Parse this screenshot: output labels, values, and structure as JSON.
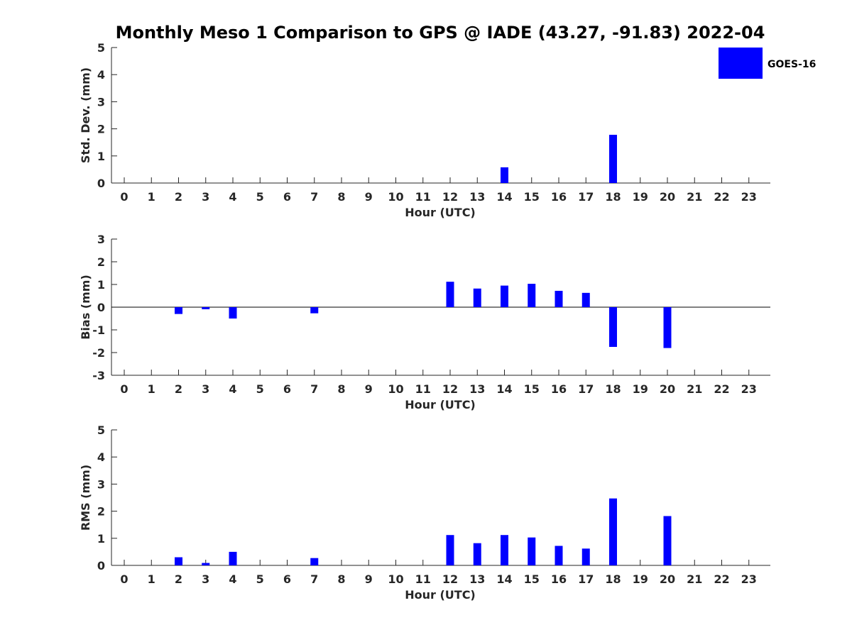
{
  "colors": {
    "bar": "#0000ff",
    "axis": "#262626",
    "zero_line": "#000000"
  },
  "chart_data": {
    "title": "Monthly Meso 1 Comparison to GPS @ IADE (43.27, -91.83) 2022-04",
    "legend": {
      "label": "GOES-16",
      "placement": "top-right"
    },
    "panels": [
      {
        "type": "bar",
        "xlabel": "Hour (UTC)",
        "ylabel": "Std. Dev. (mm)",
        "ylim": [
          0,
          5
        ],
        "yticks": [
          0,
          1,
          2,
          3,
          4,
          5
        ],
        "categories": [
          "0",
          "1",
          "2",
          "3",
          "4",
          "5",
          "6",
          "7",
          "8",
          "9",
          "10",
          "11",
          "12",
          "13",
          "14",
          "15",
          "16",
          "17",
          "18",
          "19",
          "20",
          "21",
          "22",
          "23"
        ],
        "series": [
          {
            "values": [
              null,
              null,
              0,
              0,
              0,
              null,
              null,
              0,
              null,
              null,
              null,
              null,
              0,
              0,
              0.58,
              0,
              0,
              0,
              1.78,
              null,
              0,
              null,
              null,
              null
            ]
          }
        ]
      },
      {
        "type": "bar",
        "xlabel": "Hour (UTC)",
        "ylabel": "Bias (mm)",
        "ylim": [
          -3,
          3
        ],
        "yticks": [
          -3,
          -2,
          -1,
          0,
          1,
          2,
          3
        ],
        "zero_line": true,
        "categories": [
          "0",
          "1",
          "2",
          "3",
          "4",
          "5",
          "6",
          "7",
          "8",
          "9",
          "10",
          "11",
          "12",
          "13",
          "14",
          "15",
          "16",
          "17",
          "18",
          "19",
          "20",
          "21",
          "22",
          "23"
        ],
        "series": [
          {
            "values": [
              null,
              null,
              -0.3,
              -0.09,
              -0.5,
              null,
              null,
              -0.27,
              null,
              null,
              null,
              null,
              1.12,
              0.82,
              0.95,
              1.03,
              0.72,
              0.63,
              -1.75,
              null,
              -1.8,
              null,
              null,
              null
            ]
          }
        ]
      },
      {
        "type": "bar",
        "xlabel": "Hour (UTC)",
        "ylabel": "RMS (mm)",
        "ylim": [
          0,
          5
        ],
        "yticks": [
          0,
          1,
          2,
          3,
          4,
          5
        ],
        "categories": [
          "0",
          "1",
          "2",
          "3",
          "4",
          "5",
          "6",
          "7",
          "8",
          "9",
          "10",
          "11",
          "12",
          "13",
          "14",
          "15",
          "16",
          "17",
          "18",
          "19",
          "20",
          "21",
          "22",
          "23"
        ],
        "series": [
          {
            "values": [
              null,
              null,
              0.3,
              0.09,
              0.5,
              null,
              null,
              0.27,
              null,
              null,
              null,
              null,
              1.12,
              0.82,
              1.12,
              1.03,
              0.72,
              0.62,
              2.47,
              null,
              1.82,
              null,
              null,
              null
            ]
          }
        ]
      }
    ]
  }
}
